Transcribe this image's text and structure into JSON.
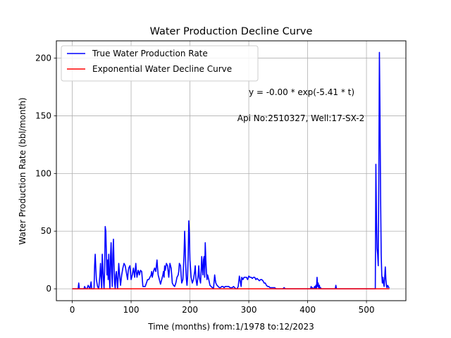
{
  "chart_data": {
    "type": "line",
    "title": "Water Production Decline Curve",
    "xlabel": "Time (months) from:1/1978 to:12/2023",
    "ylabel": "Water Production Rate (bbl/month)",
    "xlim": [
      -27,
      567
    ],
    "ylim": [
      -10.3,
      215
    ],
    "xticks": [
      0,
      100,
      200,
      300,
      400,
      500
    ],
    "yticks": [
      0,
      50,
      100,
      150,
      200
    ],
    "grid": true,
    "legend_position": "top-left",
    "annotations": [
      "y = -0.00 * exp(-5.41 * t)",
      "Api No:2510327, Well:17-SX-2"
    ],
    "series": [
      {
        "name": "True Water Production Rate",
        "color": "#0000ff",
        "points": [
          [
            0,
            0
          ],
          [
            10,
            0
          ],
          [
            11,
            5
          ],
          [
            12,
            0
          ],
          [
            20,
            0
          ],
          [
            21,
            2
          ],
          [
            23,
            0
          ],
          [
            25,
            0
          ],
          [
            27,
            3
          ],
          [
            30,
            0
          ],
          [
            32,
            6
          ],
          [
            33,
            0
          ],
          [
            37,
            0
          ],
          [
            38,
            20
          ],
          [
            39,
            30
          ],
          [
            40,
            18
          ],
          [
            41,
            8
          ],
          [
            43,
            2
          ],
          [
            45,
            0
          ],
          [
            47,
            12
          ],
          [
            48,
            22
          ],
          [
            49,
            10
          ],
          [
            50,
            0
          ],
          [
            51,
            30
          ],
          [
            52,
            18
          ],
          [
            53,
            8
          ],
          [
            54,
            0
          ],
          [
            55,
            15
          ],
          [
            56,
            54
          ],
          [
            57,
            50
          ],
          [
            58,
            30
          ],
          [
            59,
            12
          ],
          [
            60,
            25
          ],
          [
            61,
            8
          ],
          [
            62,
            30
          ],
          [
            63,
            10
          ],
          [
            64,
            0
          ],
          [
            65,
            28
          ],
          [
            66,
            40
          ],
          [
            67,
            15
          ],
          [
            68,
            2
          ],
          [
            69,
            30
          ],
          [
            70,
            43
          ],
          [
            71,
            20
          ],
          [
            72,
            5
          ],
          [
            73,
            0
          ],
          [
            74,
            12
          ],
          [
            75,
            15
          ],
          [
            76,
            8
          ],
          [
            77,
            0
          ],
          [
            78,
            10
          ],
          [
            79,
            22
          ],
          [
            80,
            15
          ],
          [
            82,
            3
          ],
          [
            84,
            12
          ],
          [
            86,
            18
          ],
          [
            88,
            22
          ],
          [
            90,
            20
          ],
          [
            92,
            14
          ],
          [
            94,
            8
          ],
          [
            95,
            15
          ],
          [
            96,
            18
          ],
          [
            98,
            20
          ],
          [
            100,
            8
          ],
          [
            102,
            12
          ],
          [
            104,
            18
          ],
          [
            106,
            10
          ],
          [
            107,
            16
          ],
          [
            108,
            22
          ],
          [
            109,
            15
          ],
          [
            110,
            10
          ],
          [
            111,
            13
          ],
          [
            112,
            16
          ],
          [
            113,
            15
          ],
          [
            114,
            12
          ],
          [
            116,
            16
          ],
          [
            118,
            15
          ],
          [
            120,
            2
          ],
          [
            122,
            2
          ],
          [
            124,
            2
          ],
          [
            126,
            5
          ],
          [
            128,
            8
          ],
          [
            130,
            8
          ],
          [
            132,
            10
          ],
          [
            134,
            12
          ],
          [
            135,
            15
          ],
          [
            136,
            10
          ],
          [
            138,
            15
          ],
          [
            140,
            18
          ],
          [
            142,
            15
          ],
          [
            143,
            20
          ],
          [
            144,
            25
          ],
          [
            145,
            18
          ],
          [
            146,
            12
          ],
          [
            148,
            8
          ],
          [
            150,
            4
          ],
          [
            152,
            8
          ],
          [
            154,
            12
          ],
          [
            155,
            15
          ],
          [
            156,
            10
          ],
          [
            157,
            20
          ],
          [
            158,
            16
          ],
          [
            160,
            22
          ],
          [
            162,
            20
          ],
          [
            163,
            15
          ],
          [
            164,
            10
          ],
          [
            166,
            22
          ],
          [
            168,
            18
          ],
          [
            169,
            12
          ],
          [
            170,
            5
          ],
          [
            172,
            3
          ],
          [
            174,
            2
          ],
          [
            176,
            5
          ],
          [
            178,
            10
          ],
          [
            180,
            12
          ],
          [
            181,
            15
          ],
          [
            182,
            22
          ],
          [
            184,
            20
          ],
          [
            185,
            12
          ],
          [
            186,
            5
          ],
          [
            188,
            8
          ],
          [
            190,
            30
          ],
          [
            191,
            50
          ],
          [
            192,
            35
          ],
          [
            193,
            18
          ],
          [
            194,
            8
          ],
          [
            195,
            3
          ],
          [
            196,
            10
          ],
          [
            197,
            28
          ],
          [
            198,
            59
          ],
          [
            199,
            48
          ],
          [
            200,
            25
          ],
          [
            201,
            18
          ],
          [
            202,
            10
          ],
          [
            204,
            5
          ],
          [
            206,
            8
          ],
          [
            208,
            15
          ],
          [
            209,
            20
          ],
          [
            210,
            10
          ],
          [
            211,
            6
          ],
          [
            212,
            3
          ],
          [
            214,
            12
          ],
          [
            215,
            20
          ],
          [
            216,
            10
          ],
          [
            218,
            5
          ],
          [
            219,
            15
          ],
          [
            220,
            28
          ],
          [
            221,
            18
          ],
          [
            222,
            12
          ],
          [
            223,
            25
          ],
          [
            224,
            28
          ],
          [
            225,
            10
          ],
          [
            226,
            40
          ],
          [
            227,
            25
          ],
          [
            228,
            15
          ],
          [
            229,
            8
          ],
          [
            230,
            12
          ],
          [
            232,
            8
          ],
          [
            234,
            3
          ],
          [
            236,
            2
          ],
          [
            238,
            1
          ],
          [
            240,
            0
          ],
          [
            242,
            12
          ],
          [
            243,
            8
          ],
          [
            244,
            5
          ],
          [
            246,
            3
          ],
          [
            248,
            2
          ],
          [
            250,
            1
          ],
          [
            252,
            1
          ],
          [
            254,
            2
          ],
          [
            256,
            2
          ],
          [
            258,
            1
          ],
          [
            260,
            2
          ],
          [
            262,
            2
          ],
          [
            264,
            2
          ],
          [
            266,
            2
          ],
          [
            268,
            1
          ],
          [
            270,
            1
          ],
          [
            272,
            1
          ],
          [
            274,
            2
          ],
          [
            276,
            1
          ],
          [
            278,
            0
          ],
          [
            280,
            0
          ],
          [
            282,
            2
          ],
          [
            284,
            11
          ],
          [
            285,
            8
          ],
          [
            286,
            5
          ],
          [
            287,
            2
          ],
          [
            288,
            10
          ],
          [
            290,
            8
          ],
          [
            292,
            10
          ],
          [
            294,
            10
          ],
          [
            296,
            10
          ],
          [
            298,
            8
          ],
          [
            300,
            11
          ],
          [
            302,
            10
          ],
          [
            304,
            10
          ],
          [
            306,
            9
          ],
          [
            308,
            10
          ],
          [
            310,
            10
          ],
          [
            312,
            8
          ],
          [
            314,
            9
          ],
          [
            316,
            8
          ],
          [
            318,
            7
          ],
          [
            320,
            8
          ],
          [
            322,
            8
          ],
          [
            324,
            7
          ],
          [
            326,
            5
          ],
          [
            328,
            5
          ],
          [
            330,
            3
          ],
          [
            332,
            2
          ],
          [
            334,
            2
          ],
          [
            336,
            1
          ],
          [
            338,
            1
          ],
          [
            340,
            1
          ],
          [
            342,
            1
          ],
          [
            344,
            1
          ],
          [
            346,
            0
          ],
          [
            348,
            0
          ],
          [
            350,
            0
          ],
          [
            352,
            0
          ],
          [
            354,
            0
          ],
          [
            356,
            0
          ],
          [
            358,
            0
          ],
          [
            360,
            1
          ],
          [
            362,
            0
          ],
          [
            370,
            0
          ],
          [
            380,
            0
          ],
          [
            390,
            0
          ],
          [
            400,
            0
          ],
          [
            405,
            0
          ],
          [
            406,
            2
          ],
          [
            407,
            0
          ],
          [
            408,
            1
          ],
          [
            409,
            0
          ],
          [
            410,
            0
          ],
          [
            412,
            2
          ],
          [
            413,
            0
          ],
          [
            414,
            3
          ],
          [
            415,
            0
          ],
          [
            416,
            10
          ],
          [
            417,
            2
          ],
          [
            418,
            5
          ],
          [
            419,
            0
          ],
          [
            420,
            3
          ],
          [
            421,
            0
          ],
          [
            422,
            1
          ],
          [
            423,
            0
          ],
          [
            425,
            0
          ],
          [
            440,
            0
          ],
          [
            447,
            0
          ],
          [
            448,
            3
          ],
          [
            449,
            0
          ],
          [
            460,
            0
          ],
          [
            470,
            0
          ],
          [
            480,
            0
          ],
          [
            490,
            0
          ],
          [
            500,
            0
          ],
          [
            510,
            0
          ],
          [
            514,
            0
          ],
          [
            515,
            0
          ],
          [
            516,
            108
          ],
          [
            517,
            60
          ],
          [
            518,
            35
          ],
          [
            519,
            30
          ],
          [
            520,
            20
          ],
          [
            521,
            100
          ],
          [
            522,
            205
          ],
          [
            523,
            150
          ],
          [
            524,
            80
          ],
          [
            525,
            30
          ],
          [
            526,
            12
          ],
          [
            527,
            5
          ],
          [
            528,
            10
          ],
          [
            529,
            5
          ],
          [
            530,
            2
          ],
          [
            531,
            10
          ],
          [
            532,
            19
          ],
          [
            533,
            8
          ],
          [
            534,
            2
          ],
          [
            535,
            1
          ],
          [
            536,
            3
          ],
          [
            537,
            2
          ],
          [
            538,
            1
          ],
          [
            539,
            1
          ]
        ]
      },
      {
        "name": "Exponential Water Decline Curve",
        "color": "#ff0000",
        "points": [
          [
            0,
            0
          ],
          [
            539,
            0
          ]
        ]
      }
    ]
  }
}
